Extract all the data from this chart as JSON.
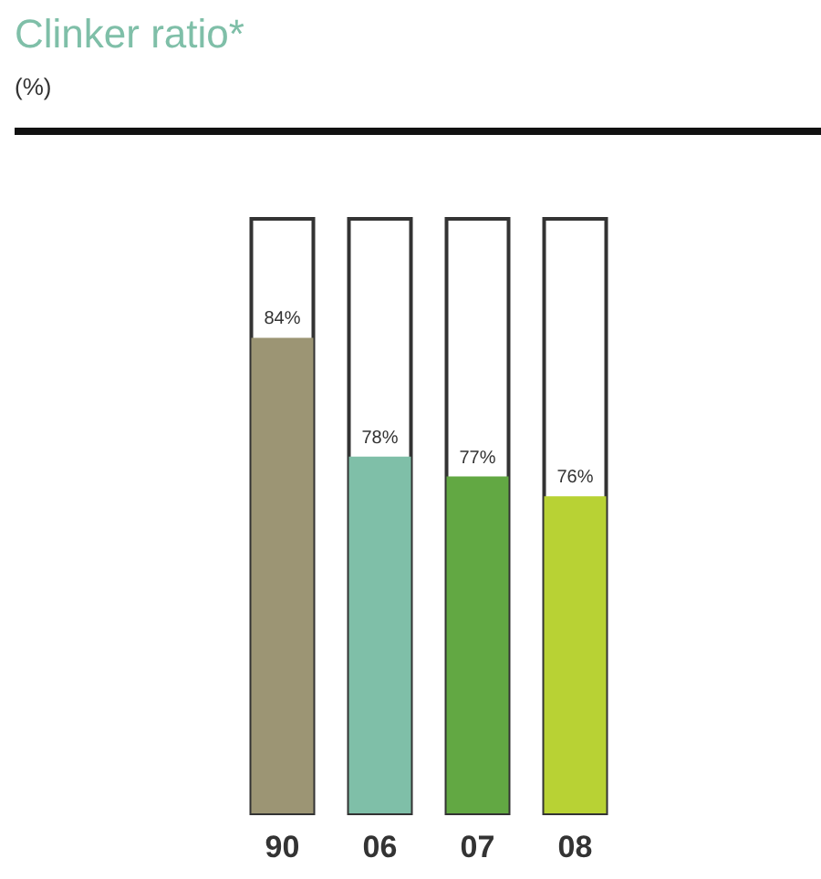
{
  "chart_data": {
    "type": "bar",
    "title": "Clinker ratio*",
    "subtitle": "(%)",
    "categories": [
      "90",
      "06",
      "07",
      "08"
    ],
    "values": [
      84,
      78,
      77,
      76
    ],
    "colors": [
      "#9c9574",
      "#7fbfa8",
      "#62a843",
      "#b8d234"
    ],
    "value_labels": [
      "84%",
      "78%",
      "77%",
      "76%"
    ],
    "ylim": [
      60,
      90
    ],
    "tick_labels": "x"
  }
}
